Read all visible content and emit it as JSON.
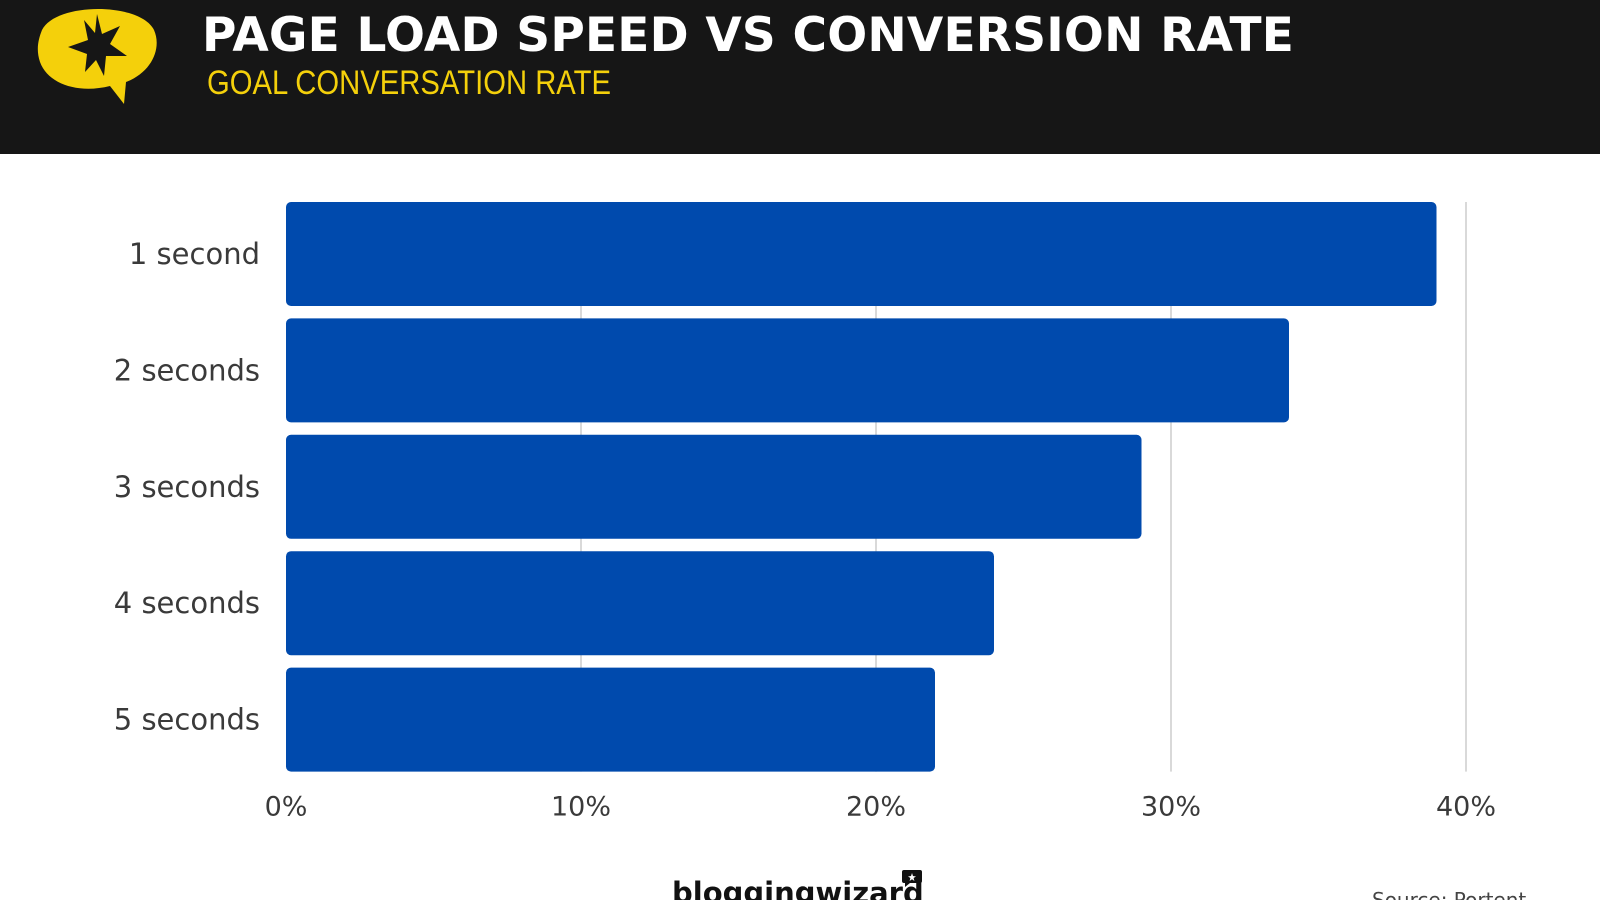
{
  "header": {
    "title": "PAGE LOAD SPEED VS CONVERSION RATE",
    "subtitle": "GOAL CONVERSATION RATE",
    "logo_icon": "star-speech-bubble-icon"
  },
  "colors": {
    "header_background": "#161616",
    "title_text": "#ffffff",
    "subtitle_text": "#f4d00b",
    "logo_yellow": "#f4d00b",
    "bar": "#004aad",
    "gridline": "#d9d9d9",
    "axis_text": "#3a3a3a"
  },
  "chart_data": {
    "type": "bar",
    "orientation": "horizontal",
    "title": "PAGE LOAD SPEED VS CONVERSION RATE",
    "subtitle": "GOAL CONVERSATION RATE",
    "categories": [
      "1 second",
      "2 seconds",
      "3 seconds",
      "4 seconds",
      "5 seconds"
    ],
    "values": [
      39,
      34,
      29,
      24,
      22
    ],
    "unit": "%",
    "xlim": [
      0,
      40
    ],
    "x_ticks": [
      0,
      10,
      20,
      30,
      40
    ],
    "x_tick_labels": [
      "0%",
      "10%",
      "20%",
      "30%",
      "40%"
    ],
    "xlabel": "",
    "ylabel": "",
    "grid": "vertical",
    "legend": "none"
  },
  "footer": {
    "brand": "bloggingwizard",
    "source": "Source: Portent"
  }
}
